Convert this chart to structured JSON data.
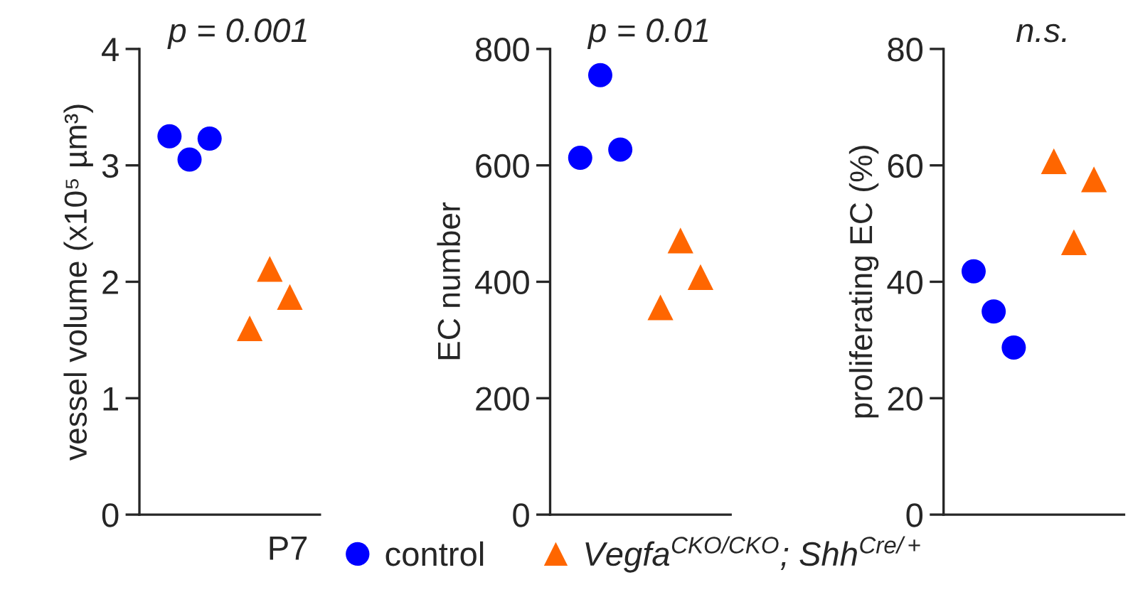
{
  "chart_data": [
    {
      "type": "scatter",
      "title": "p = 0.001",
      "ylabel": "vessel volume (x10⁵ µm³)",
      "legend_title": "P7",
      "legend": "bottom",
      "tick_labels": "y",
      "categories": [
        null,
        null,
        null,
        null,
        null,
        null,
        null,
        null,
        null
      ],
      "ylim": [
        0,
        4
      ],
      "yticks": [
        0,
        1,
        2,
        3,
        4
      ],
      "series": [
        {
          "name": "control",
          "color": "#0000ff",
          "marker": "circle",
          "values": [
            null,
            3.25,
            3.05,
            3.23,
            null,
            null,
            null,
            null,
            null
          ]
        },
        {
          "name": "Vegfa$^{CKO/CKO}$; Shh$^{Cre/+}$",
          "color": "#ff6600",
          "marker": "triangle",
          "values": [
            null,
            null,
            null,
            null,
            null,
            1.6,
            2.11,
            1.87,
            null
          ]
        }
      ]
    },
    {
      "type": "scatter",
      "title": "p = 0.01",
      "ylabel": "EC number",
      "tick_labels": "y",
      "categories": [
        null,
        null,
        null,
        null,
        null,
        null,
        null,
        null,
        null
      ],
      "ylim": [
        0,
        800
      ],
      "yticks": [
        0,
        200,
        400,
        600,
        800
      ],
      "series": [
        {
          "color": "#0000ff",
          "marker": "circle",
          "values": [
            null,
            613,
            755,
            627,
            null,
            null,
            null,
            null,
            null
          ]
        },
        {
          "color": "#ff6600",
          "marker": "triangle",
          "values": [
            null,
            null,
            null,
            null,
            null,
            356,
            471,
            408,
            null
          ]
        }
      ]
    },
    {
      "type": "scatter",
      "title": "n.s.",
      "ylabel": "proliferating EC (%)",
      "tick_labels": "y",
      "categories": [
        null,
        null,
        null,
        null,
        null,
        null,
        null,
        null,
        null
      ],
      "ylim": [
        0,
        80
      ],
      "yticks": [
        0,
        20,
        40,
        60,
        80
      ],
      "series": [
        {
          "color": "#0000ff",
          "marker": "circle",
          "values": [
            null,
            41.8,
            34.9,
            28.7,
            null,
            null,
            null,
            null,
            null
          ]
        },
        {
          "color": "#ff6600",
          "marker": "triangle",
          "values": [
            null,
            null,
            null,
            null,
            null,
            60.7,
            46.8,
            57.6,
            null
          ]
        }
      ]
    }
  ]
}
